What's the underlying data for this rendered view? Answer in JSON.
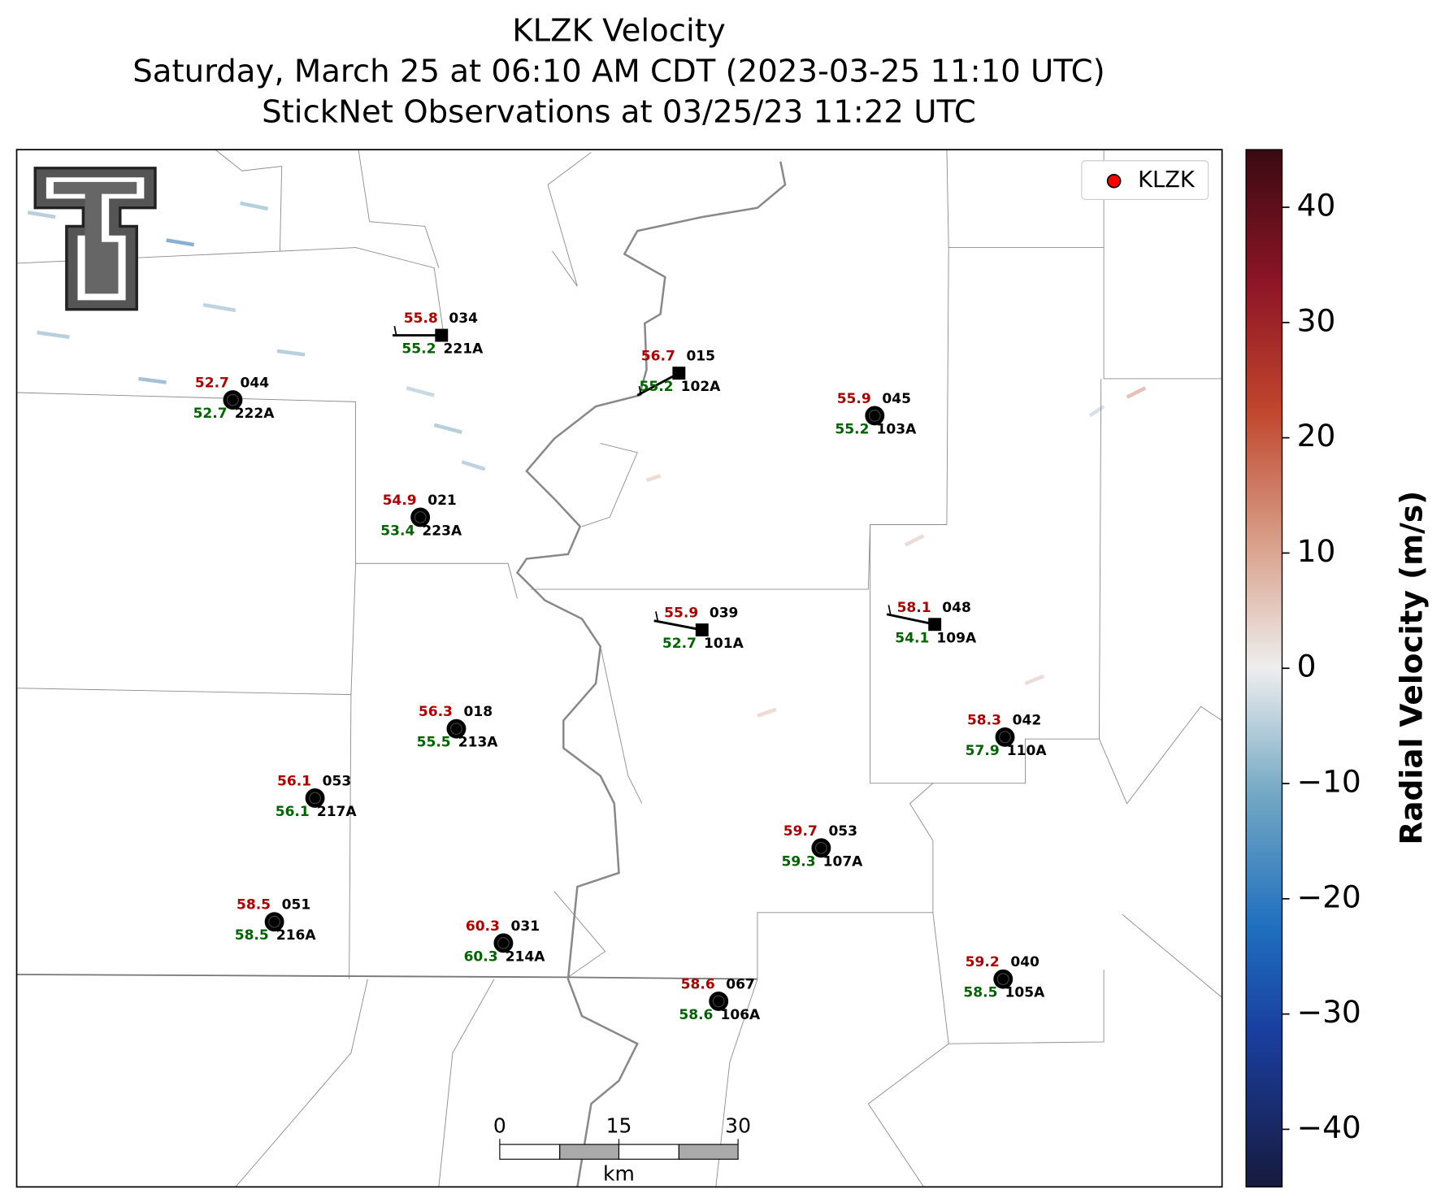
{
  "header": {
    "title": "KLZK Velocity",
    "subtitle": "Saturday, March 25 at 06:10 AM CDT (2023-03-25 11:10 UTC)",
    "observation_time": "StickNet Observations at 03/25/23 11:22 UTC"
  },
  "chart_data": {
    "type": "map",
    "colorbar": {
      "label": "Radial Velocity (m/s)",
      "ylim": [
        -45,
        45
      ],
      "yticks": [
        {
          "value": -40,
          "label": "−40"
        },
        {
          "value": -30,
          "label": "−30"
        },
        {
          "value": -20,
          "label": "−20"
        },
        {
          "value": -10,
          "label": "−10"
        },
        0,
        10,
        20,
        30,
        40
      ]
    },
    "legend": {
      "label": "KLZK",
      "position": "upper right",
      "color": "#ff0000"
    },
    "scale_bar": {
      "ticks": [
        0,
        15,
        30
      ],
      "unit": "km"
    },
    "stations": [
      {
        "temperature": 52.7,
        "dewpoint": 52.7,
        "code": "044",
        "id": "222A"
      },
      {
        "temperature": 55.8,
        "dewpoint": 55.2,
        "code": "034",
        "id": "221A"
      },
      {
        "temperature": 56.7,
        "dewpoint": 55.2,
        "code": "015",
        "id": "102A"
      },
      {
        "temperature": 55.9,
        "dewpoint": 55.2,
        "code": "045",
        "id": "103A"
      },
      {
        "temperature": 54.9,
        "dewpoint": 53.4,
        "code": "021",
        "id": "223A"
      },
      {
        "temperature": 55.9,
        "dewpoint": 52.7,
        "code": "039",
        "id": "101A"
      },
      {
        "temperature": 58.1,
        "dewpoint": 54.1,
        "code": "048",
        "id": "109A"
      },
      {
        "temperature": 56.3,
        "dewpoint": 55.5,
        "code": "018",
        "id": "213A"
      },
      {
        "temperature": 58.3,
        "dewpoint": 57.9,
        "code": "042",
        "id": "110A"
      },
      {
        "temperature": 56.1,
        "dewpoint": 56.1,
        "code": "053",
        "id": "217A"
      },
      {
        "temperature": 59.7,
        "dewpoint": 59.3,
        "code": "053",
        "id": "107A"
      },
      {
        "temperature": 58.5,
        "dewpoint": 58.5,
        "code": "051",
        "id": "216A"
      },
      {
        "temperature": 60.3,
        "dewpoint": 60.3,
        "code": "031",
        "id": "214A"
      },
      {
        "temperature": 59.2,
        "dewpoint": 58.5,
        "code": "040",
        "id": "105A"
      },
      {
        "temperature": 58.6,
        "dewpoint": 58.6,
        "code": "067",
        "id": "106A"
      }
    ]
  }
}
